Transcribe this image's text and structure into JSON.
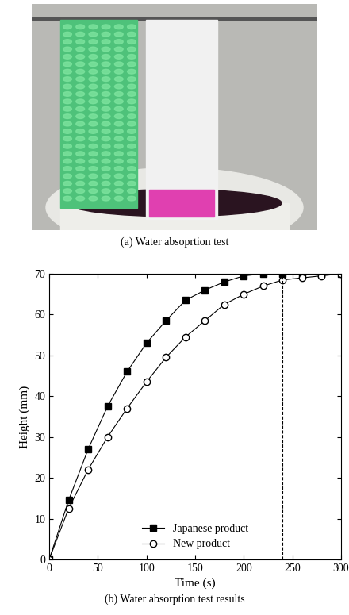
{
  "captions": {
    "a": "(a) Water absoprtion test",
    "b": "(b) Water absorption test results"
  },
  "chart_data": {
    "type": "line",
    "x_label": "Time (s)",
    "y_label": "Height (mm)",
    "series": [
      {
        "name": "Japanese product",
        "color": "#000000",
        "marker": "square",
        "line_style": "solid",
        "x": [
          0,
          20,
          40,
          60,
          80,
          100,
          120,
          140,
          160,
          180,
          200,
          220,
          240,
          260,
          280,
          300
        ],
        "values": [
          0,
          14.5,
          27,
          37.5,
          46,
          53,
          58.5,
          63.5,
          66,
          68,
          69.5,
          70,
          70,
          70,
          70,
          70
        ]
      },
      {
        "name": "New product",
        "color": "#000000",
        "marker": "circle",
        "line_style": "solid",
        "x": [
          0,
          20,
          40,
          60,
          80,
          100,
          120,
          140,
          160,
          180,
          200,
          220,
          240,
          260,
          280,
          300
        ],
        "values": [
          0,
          12.5,
          22,
          30,
          37,
          43.5,
          49.5,
          54.5,
          58.5,
          62.5,
          65,
          67,
          68.5,
          69,
          69.5,
          70
        ]
      }
    ],
    "vline_x": 240,
    "xlim": [
      0,
      300
    ],
    "xticks": [
      0,
      50,
      100,
      150,
      200,
      250,
      300
    ],
    "ylim": [
      0,
      70
    ],
    "yticks": [
      0,
      10,
      20,
      30,
      40,
      50,
      60,
      70
    ],
    "legend": "lower center",
    "grid": false
  }
}
